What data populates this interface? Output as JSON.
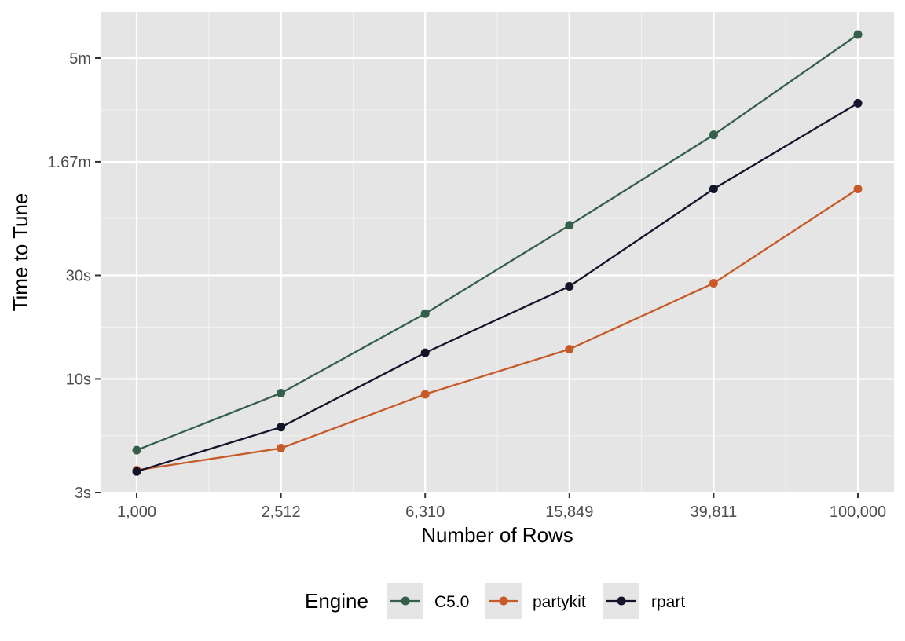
{
  "chart_data": {
    "type": "line",
    "xlabel": "Number of Rows",
    "ylabel": "Time to Tune",
    "x_scale": "log10",
    "y_scale": "log10",
    "x": [
      1000,
      2512,
      6310,
      15849,
      39811,
      100000
    ],
    "x_tick_labels": [
      "1,000",
      "2,512",
      "6,310",
      "15,849",
      "39,811",
      "100,000"
    ],
    "y_ticks_seconds": [
      3,
      10,
      30,
      100,
      300
    ],
    "y_tick_labels": [
      "3s",
      "10s",
      "30s",
      "1.67m",
      "5m"
    ],
    "xlim": [
      1000,
      100000
    ],
    "ylim_seconds": [
      3,
      300
    ],
    "grid": true,
    "legend": {
      "title": "Engine",
      "position": "bottom"
    },
    "series": [
      {
        "name": "C5.0",
        "color": "#34604B",
        "values": [
          4.7,
          8.6,
          20.0,
          51.0,
          133.0,
          385.0
        ]
      },
      {
        "name": "partykit",
        "color": "#C65A28",
        "values": [
          3.8,
          4.8,
          8.5,
          13.7,
          27.6,
          75.0
        ]
      },
      {
        "name": "rpart",
        "color": "#13132A",
        "values": [
          3.75,
          6.0,
          13.2,
          26.7,
          75.0,
          186.0
        ]
      }
    ]
  }
}
